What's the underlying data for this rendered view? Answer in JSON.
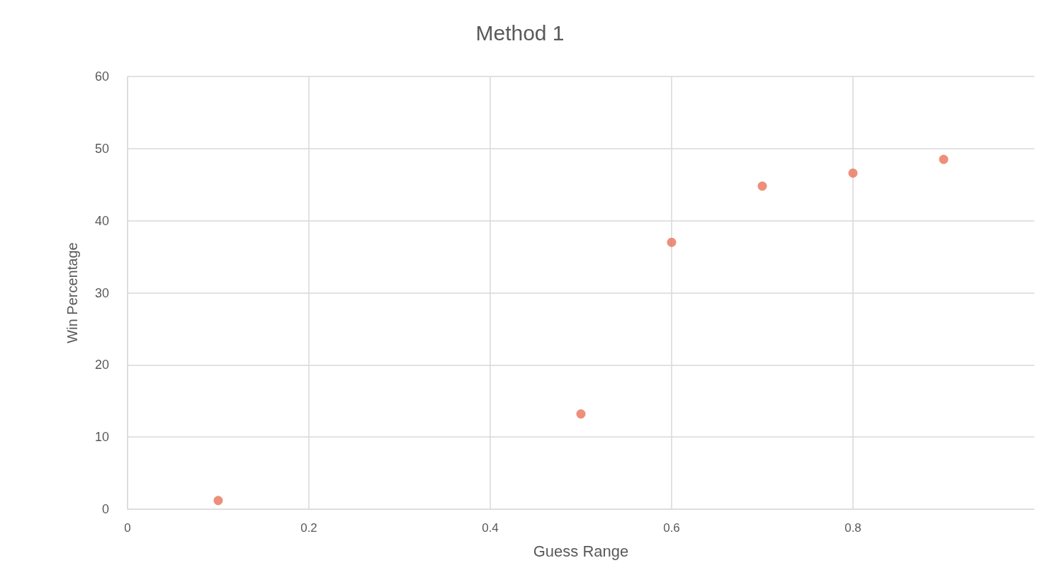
{
  "chart_data": {
    "type": "scatter",
    "title": "Method 1",
    "xlabel": "Guess Range",
    "ylabel": "Win Percentage",
    "x": [
      0.1,
      0.5,
      0.6,
      0.7,
      0.8,
      0.9
    ],
    "series": [
      {
        "color": "#e8735a",
        "values": [
          1.2,
          13.2,
          37.0,
          44.8,
          46.6,
          48.5
        ]
      }
    ],
    "xlim": [
      0,
      1
    ],
    "xticks": [
      0,
      0.2,
      0.4,
      0.6,
      0.8
    ],
    "ylim": [
      0,
      60
    ],
    "yticks": [
      0,
      10,
      20,
      30,
      40,
      50,
      60
    ],
    "grid": true,
    "marker": "circle"
  }
}
